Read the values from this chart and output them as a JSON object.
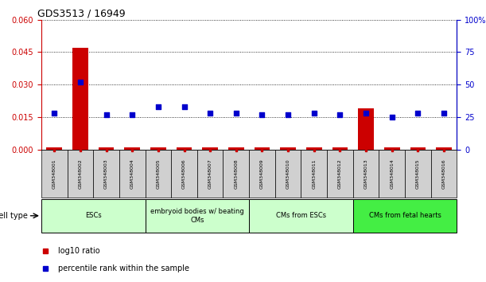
{
  "title": "GDS3513 / 16949",
  "samples": [
    "GSM348001",
    "GSM348002",
    "GSM348003",
    "GSM348004",
    "GSM348005",
    "GSM348006",
    "GSM348007",
    "GSM348008",
    "GSM348009",
    "GSM348010",
    "GSM348011",
    "GSM348012",
    "GSM348013",
    "GSM348014",
    "GSM348015",
    "GSM348016"
  ],
  "log10_ratio": [
    0.001,
    0.047,
    0.001,
    0.001,
    0.001,
    0.001,
    0.001,
    0.001,
    0.001,
    0.001,
    0.001,
    0.001,
    0.019,
    0.001,
    0.001,
    0.001
  ],
  "percentile_rank": [
    28,
    52,
    27,
    27,
    33,
    33,
    28,
    28,
    27,
    27,
    28,
    27,
    28,
    25,
    28,
    28
  ],
  "ylim_left": [
    0,
    0.06
  ],
  "ylim_right": [
    0,
    100
  ],
  "yticks_left": [
    0,
    0.015,
    0.03,
    0.045,
    0.06
  ],
  "yticks_right": [
    0,
    25,
    50,
    75,
    100
  ],
  "cell_type_groups": [
    {
      "label": "ESCs",
      "start": 0,
      "end": 3
    },
    {
      "label": "embryoid bodies w/ beating\nCMs",
      "start": 4,
      "end": 7
    },
    {
      "label": "CMs from ESCs",
      "start": 8,
      "end": 11
    },
    {
      "label": "CMs from fetal hearts",
      "start": 12,
      "end": 15
    }
  ],
  "group_colors": [
    "#ccffcc",
    "#ccffcc",
    "#ccffcc",
    "#44ee44"
  ],
  "bar_color": "#cc0000",
  "dot_color": "#0000cc",
  "left_axis_color": "#cc0000",
  "right_axis_color": "#0000cc",
  "sample_box_color": "#d0d0d0",
  "legend_items": [
    {
      "color": "#cc0000",
      "label": "log10 ratio"
    },
    {
      "color": "#0000cc",
      "label": "percentile rank within the sample"
    }
  ]
}
